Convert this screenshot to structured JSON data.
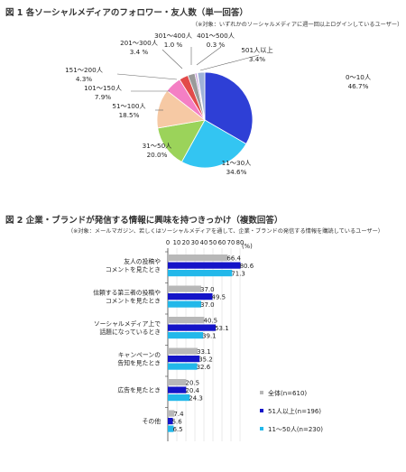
{
  "figure1": {
    "title": "図 1 各ソーシャルメディアのフォロワー・友人数（単一回答）",
    "note": "（※対象：いずれかのソーシャルメディアに週一回以上ログインしているユーザー）"
  },
  "figure2": {
    "title": "図 2 企業・ブランドが発信する情報に興味を持つきっかけ（複数回答）",
    "note": "（※対象：メールマガジン、若しくはソーシャルメディアを通して、企業・ブランドの発信する情報を購読しているユーザー）"
  },
  "chart_data": [
    {
      "type": "pie",
      "title": "図 1 各ソーシャルメディアのフォロワー・友人数（単一回答）",
      "slices": [
        {
          "label": "0～10人",
          "value": 46.7,
          "display": "46.7%",
          "color": "#2e3fd6"
        },
        {
          "label": "11～30人",
          "value": 34.6,
          "display": "34.6%",
          "color": "#33c5f2"
        },
        {
          "label": "31～50人",
          "value": 20.0,
          "display": "20.0%",
          "color": "#9bd35a"
        },
        {
          "label": "51～100人",
          "value": 18.5,
          "display": "18.5%",
          "color": "#f6c9a4"
        },
        {
          "label": "101～150人",
          "value": 7.9,
          "display": "7.9%",
          "color": "#f47fc4"
        },
        {
          "label": "151～200人",
          "value": 4.3,
          "display": "4.3%",
          "color": "#e24a4a"
        },
        {
          "label": "201～300人",
          "value": 3.4,
          "display": "3.4 %",
          "color": "#9a9a9a"
        },
        {
          "label": "301～400人",
          "value": 1.0,
          "display": "1.0 %",
          "color": "#c8a2dc"
        },
        {
          "label": "401～500人",
          "value": 0.3,
          "display": "0.3 %",
          "color": "#4e6f9e"
        },
        {
          "label": "501人以上",
          "value": 3.4,
          "display": "3.4%",
          "color": "#9fb3d8"
        }
      ]
    },
    {
      "type": "bar",
      "orientation": "horizontal",
      "title": "図 2 企業・ブランドが発信する情報に興味を持つきっかけ（複数回答）",
      "unit": "(%)",
      "xlim": [
        0,
        80
      ],
      "ticks": [
        0,
        10,
        20,
        30,
        40,
        50,
        60,
        70,
        80
      ],
      "grid": true,
      "legend_position": "bottom-right",
      "categories": [
        [
          "友人の投稿や",
          "コメントを見たとき"
        ],
        [
          "信頼する第三者の投稿や",
          "コメントを見たとき"
        ],
        [
          "ソーシャルメディア上で",
          "話題になっているとき"
        ],
        [
          "キャンペーンの",
          "告知を見たとき"
        ],
        [
          "広告を見たとき"
        ],
        [
          "その他"
        ]
      ],
      "series": [
        {
          "name": "全体(n=610)",
          "color": "#b8b8b8",
          "values": [
            66.4,
            37.0,
            40.5,
            33.1,
            20.5,
            7.4
          ]
        },
        {
          "name": "51人以上(n=196)",
          "color": "#1414c8",
          "values": [
            80.6,
            49.5,
            53.1,
            35.2,
            20.4,
            5.6
          ]
        },
        {
          "name": "11～50人(n=230)",
          "color": "#22b8ea",
          "values": [
            71.3,
            37.0,
            39.1,
            32.6,
            24.3,
            6.5
          ]
        }
      ]
    }
  ]
}
